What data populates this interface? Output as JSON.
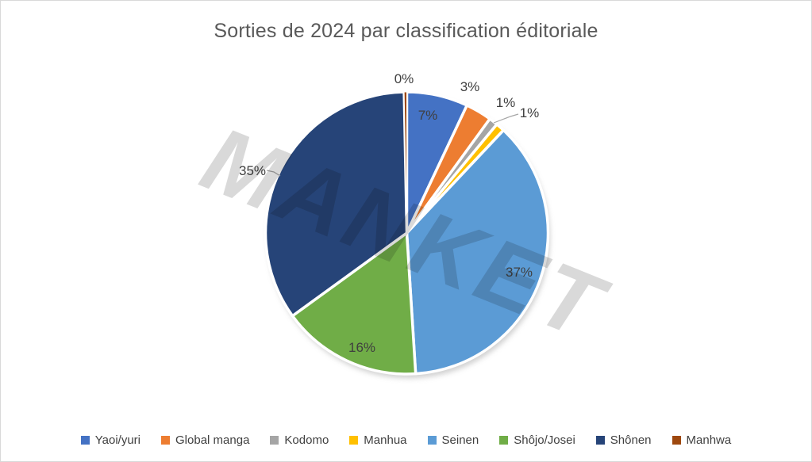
{
  "title": "Sorties de 2024 par classification éditoriale",
  "watermark": "MANKET",
  "chart_data": {
    "type": "pie",
    "title": "Sorties de 2024 par classification éditoriale",
    "start_angle_deg": 0,
    "direction": "clockwise",
    "legend_position": "bottom",
    "slices": [
      {
        "label": "Yaoi/yuri",
        "value": 7,
        "percent_label": "7%",
        "color": "#4472C4",
        "label_inside": true,
        "leader_line": false
      },
      {
        "label": "Global manga",
        "value": 3,
        "percent_label": "3%",
        "color": "#ED7D31",
        "label_inside": false,
        "leader_line": false
      },
      {
        "label": "Kodomo",
        "value": 1,
        "percent_label": "1%",
        "color": "#A5A5A5",
        "label_inside": false,
        "leader_line": false
      },
      {
        "label": "Manhua",
        "value": 1,
        "percent_label": "1%",
        "color": "#FFC000",
        "label_inside": false,
        "leader_line": true
      },
      {
        "label": "Seinen",
        "value": 37,
        "percent_label": "37%",
        "color": "#5B9BD5",
        "label_inside": true,
        "leader_line": false
      },
      {
        "label": "Shôjo/Josei",
        "value": 16,
        "percent_label": "16%",
        "color": "#70AD47",
        "label_inside": true,
        "leader_line": false
      },
      {
        "label": "Shônen",
        "value": 34.7,
        "percent_label": "35%",
        "color": "#264478",
        "label_inside": false,
        "leader_line": true
      },
      {
        "label": "Manhwa",
        "value": 0.3,
        "percent_label": "0%",
        "color": "#9E480E",
        "label_inside": false,
        "leader_line": false
      }
    ]
  },
  "colors": {
    "title_text": "#595959",
    "label_text": "#3F3F3F",
    "legend_text": "#404040",
    "chart_border": "#D9D9D9",
    "leader_line": "#A6A6A6",
    "watermark": "#D9D9D9",
    "slice_border": "#FFFFFF"
  }
}
